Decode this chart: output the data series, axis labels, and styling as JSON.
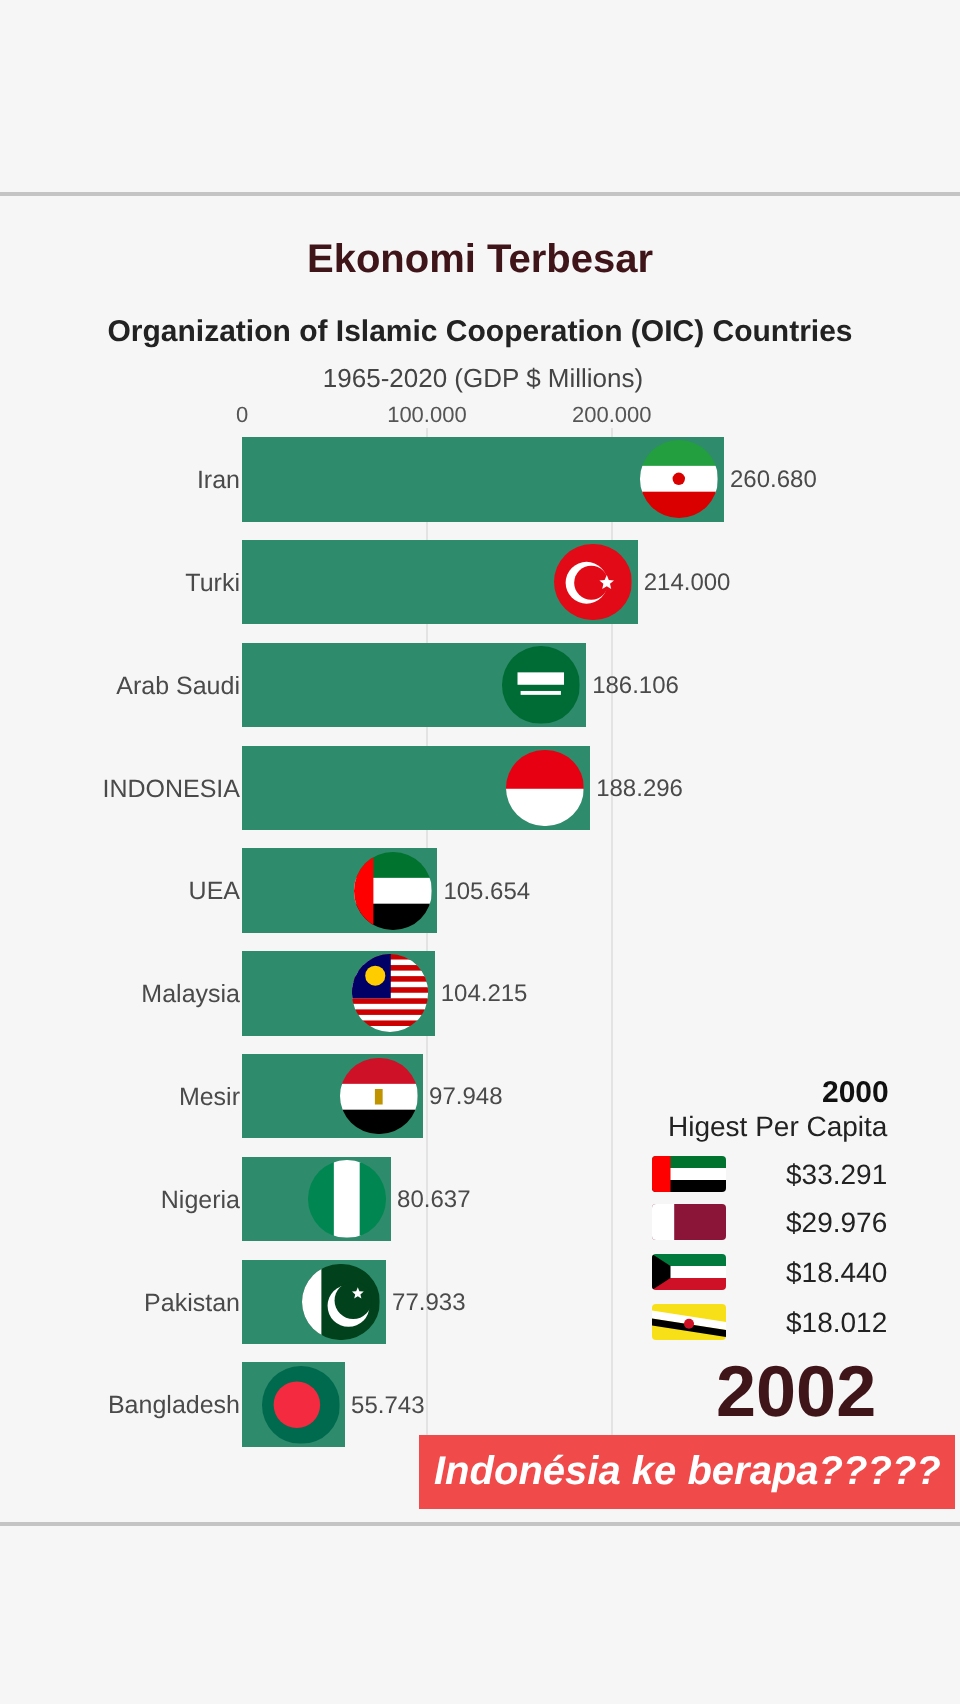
{
  "chart_data": {
    "type": "bar",
    "title": "Ekonomi Terbesar",
    "subtitle": "Organization of Islamic Cooperation (OIC) Countries",
    "xlabel": "1965-2020 (GDP $ Millions)",
    "orientation": "horizontal",
    "categories": [
      "Iran",
      "Turki",
      "Arab Saudi",
      "INDONESIA",
      "UEA",
      "Malaysia",
      "Mesir",
      "Nigeria",
      "Pakistan",
      "Bangladesh"
    ],
    "values": [
      260680,
      214000,
      186106,
      188296,
      105654,
      104215,
      97948,
      80637,
      77933,
      55743
    ],
    "value_labels": [
      "260.680",
      "214.000",
      "186.106",
      "188.296",
      "105.654",
      "104.215",
      "97.948",
      "80.637",
      "77.933",
      "55.743"
    ],
    "color": "#2e8b6b",
    "xlim": [
      0,
      260680
    ],
    "xticks": [
      0,
      {
        "value": 100000,
        "label": "100.000"
      },
      {
        "value": 200000,
        "label": "200.000"
      }
    ],
    "grid": "x",
    "annotations": [
      "2000",
      "Higest Per Capita",
      "$33.291",
      "$29.976",
      "$18.440",
      "$18.012",
      "2002",
      "Indonésia ke berapa?????"
    ]
  }
}
